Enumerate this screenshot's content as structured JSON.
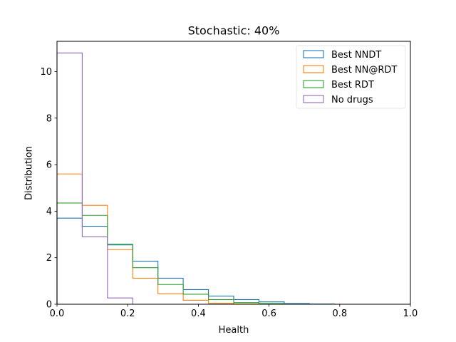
{
  "chart_data": {
    "type": "histogram-step",
    "title": "Stochastic: 40%",
    "xlabel": "Health",
    "ylabel": "Distribution",
    "xlim": [
      0.0,
      1.0
    ],
    "ylim": [
      0,
      11.3
    ],
    "xticks": [
      0.0,
      0.2,
      0.4,
      0.6,
      0.8,
      1.0
    ],
    "xtick_labels": [
      "0.0",
      "0.2",
      "0.4",
      "0.6",
      "0.8",
      "1.0"
    ],
    "yticks": [
      0,
      2,
      4,
      6,
      8,
      10
    ],
    "ytick_labels": [
      "0",
      "2",
      "4",
      "6",
      "8",
      "10"
    ],
    "bin_edges": [
      0.0,
      0.0714,
      0.1429,
      0.2143,
      0.2857,
      0.3571,
      0.4286,
      0.5,
      0.5714,
      0.6429,
      0.7143,
      0.7857,
      0.8571,
      0.9286,
      1.0
    ],
    "legend_position": "top-right",
    "series": [
      {
        "name": "Best NNDT",
        "color": "#1f77b4",
        "values": [
          3.7,
          3.35,
          2.55,
          1.85,
          1.12,
          0.63,
          0.35,
          0.2,
          0.1,
          0.03,
          0.01,
          0.0,
          0.0,
          0.0
        ]
      },
      {
        "name": "Best NN@RDT",
        "color": "#ff7f0e",
        "values": [
          5.6,
          4.25,
          2.35,
          1.12,
          0.45,
          0.17,
          0.04,
          0.01,
          0.0,
          0.0,
          0.0,
          0.0,
          0.0,
          0.0
        ]
      },
      {
        "name": "Best RDT",
        "color": "#2ca02c",
        "values": [
          4.35,
          3.82,
          2.58,
          1.57,
          0.85,
          0.43,
          0.2,
          0.07,
          0.03,
          0.0,
          0.0,
          0.0,
          0.0,
          0.0
        ]
      },
      {
        "name": "No drugs",
        "color": "#9467bd",
        "values": [
          10.8,
          2.9,
          0.27,
          0.0,
          0.0,
          0.0,
          0.0,
          0.0,
          0.0,
          0.0,
          0.0,
          0.0,
          0.0,
          0.0
        ]
      }
    ]
  }
}
